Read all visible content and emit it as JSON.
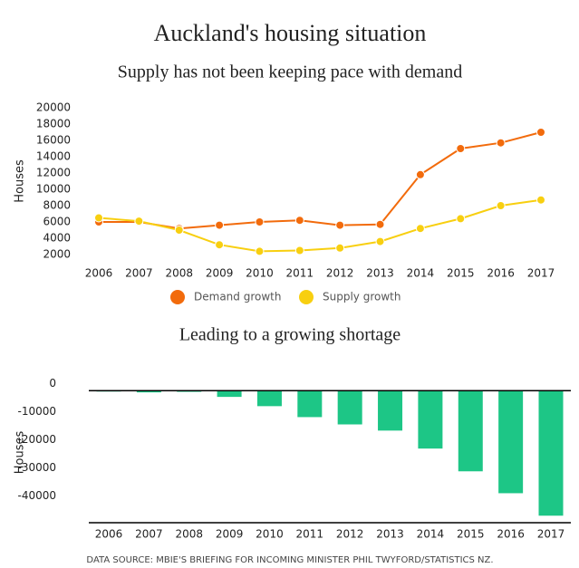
{
  "title": "Auckland's housing situation",
  "source": "DATA SOURCE: MBIE'S BRIEFING FOR INCOMING MINISTER PHIL TWYFORD/STATISTICS NZ.",
  "chart_data": [
    {
      "type": "line",
      "title": "Supply has not been keeping pace with demand",
      "y_label": "Houses",
      "categories": [
        "2006",
        "2007",
        "2008",
        "2009",
        "2010",
        "2011",
        "2012",
        "2013",
        "2014",
        "2015",
        "2016",
        "2017"
      ],
      "series": [
        {
          "name": "Demand growth",
          "color": "#f26b0c",
          "values": [
            6000,
            6000,
            5200,
            5600,
            6000,
            6200,
            5600,
            5700,
            11800,
            15000,
            15700,
            17000
          ]
        },
        {
          "name": "Supply growth",
          "color": "#f8cf10",
          "values": [
            6500,
            6100,
            5000,
            3200,
            2400,
            2500,
            2800,
            3600,
            5200,
            6400,
            8000,
            8700
          ]
        }
      ],
      "ylim": [
        2000,
        20000
      ],
      "yticks": [
        2000,
        4000,
        6000,
        8000,
        10000,
        12000,
        14000,
        16000,
        18000,
        20000
      ],
      "legend": "bottom"
    },
    {
      "type": "bar",
      "title": "Leading to a growing shortage",
      "y_label": "Houses",
      "categories": [
        "2006",
        "2007",
        "2008",
        "2009",
        "2010",
        "2011",
        "2012",
        "2013",
        "2014",
        "2015",
        "2016",
        "2017"
      ],
      "values": [
        -300,
        -600,
        -400,
        -2200,
        -5500,
        -9400,
        -12000,
        -14200,
        -20600,
        -28700,
        -36500,
        -44500
      ],
      "color": "#1dc686",
      "ylim": [
        -47000,
        3000
      ],
      "yticks": [
        0,
        -10000,
        -20000,
        -30000,
        -40000
      ]
    }
  ]
}
